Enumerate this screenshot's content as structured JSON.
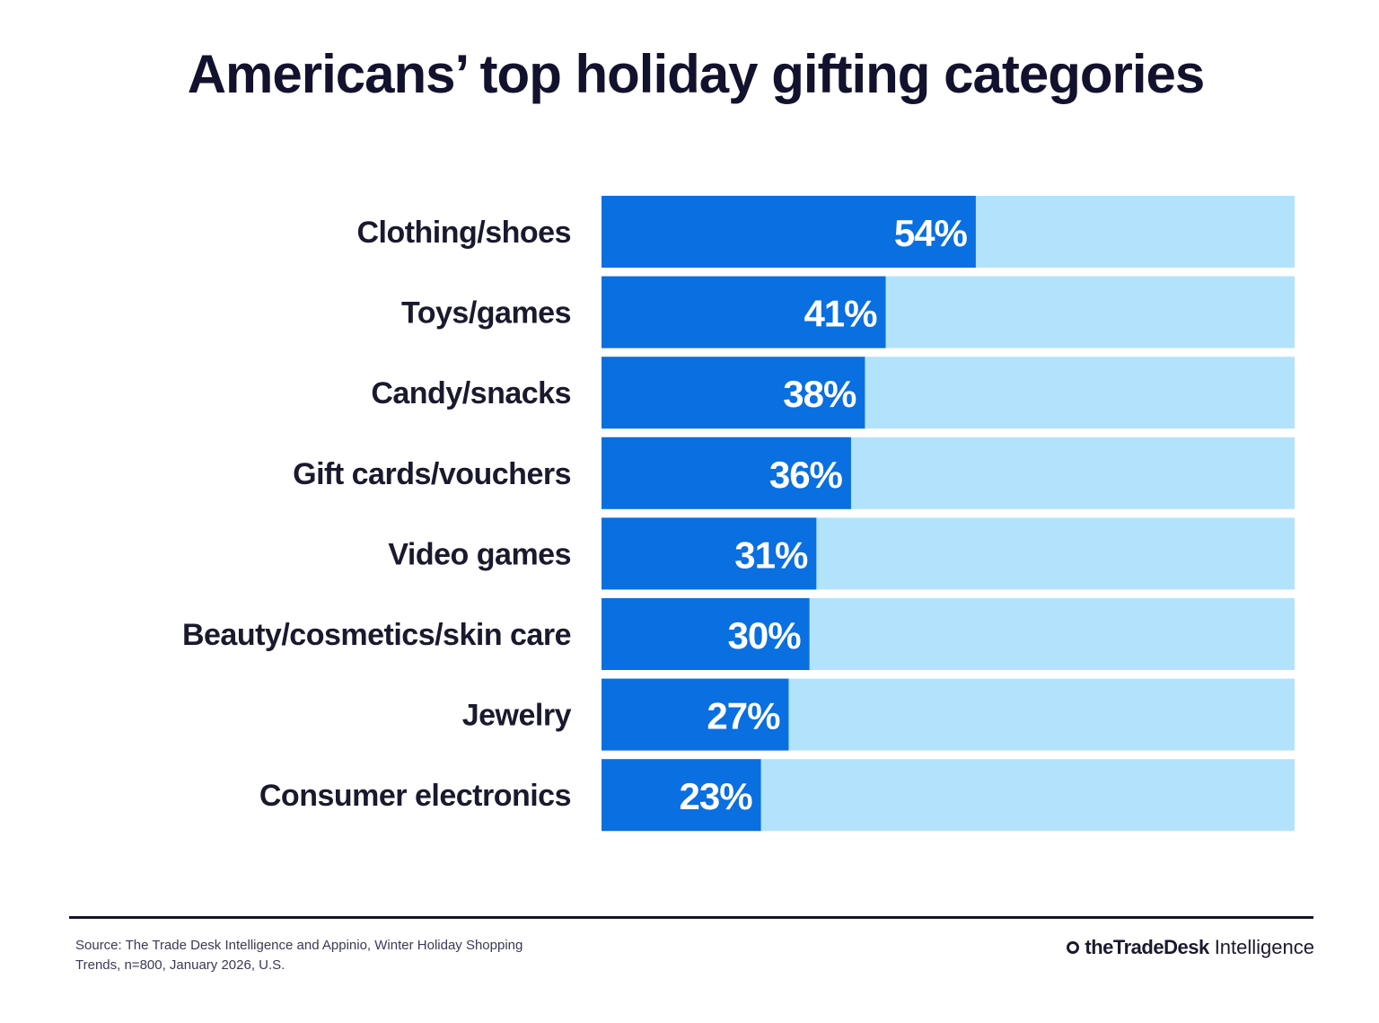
{
  "chart_data": {
    "type": "bar",
    "orientation": "horizontal",
    "title": "Americans’ top holiday gifting categories",
    "categories": [
      "Clothing/shoes",
      "Toys/games",
      "Candy/snacks",
      "Gift cards/vouchers",
      "Video games",
      "Beauty/cosmetics/skin care",
      "Jewelry",
      "Consumer electronics"
    ],
    "values": [
      54,
      41,
      38,
      36,
      31,
      30,
      27,
      23
    ],
    "value_labels": [
      "54%",
      "41%",
      "38%",
      "36%",
      "31%",
      "30%",
      "27%",
      "23%"
    ],
    "xlim": [
      0,
      100
    ],
    "grid": false,
    "colors": {
      "bar": "#0a6fe0",
      "track": "#b3e3fc"
    }
  },
  "footer": {
    "source": "Source: The Trade Desk Intelligence and Appinio, Winter Holiday Shopping Trends, n=800, January 2026, U.S.",
    "logo_brand": "theTradeDesk",
    "logo_suffix": "Intelligence"
  }
}
